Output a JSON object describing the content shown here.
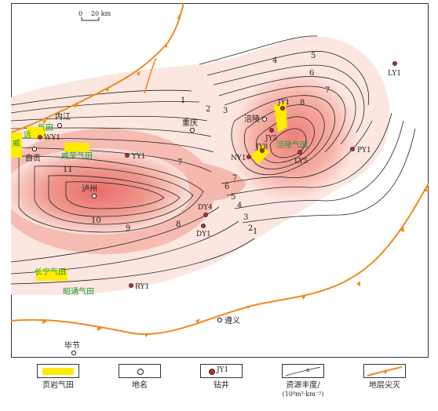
{
  "map": {
    "scale_bar": {
      "zero": "0",
      "distance": "20 km"
    },
    "cities": [
      {
        "id": "neijiang",
        "name": "内江"
      },
      {
        "id": "zigong",
        "name": "自贡"
      },
      {
        "id": "luzhou",
        "name": "泸州"
      },
      {
        "id": "chongqing",
        "name": "重庆"
      },
      {
        "id": "fuling",
        "name": "涪陵"
      },
      {
        "id": "zunyi",
        "name": "遵义"
      },
      {
        "id": "bijie",
        "name": "毕节"
      }
    ],
    "wells": [
      {
        "id": "wy1",
        "name": "WY1"
      },
      {
        "id": "yy1",
        "name": "YY1"
      },
      {
        "id": "jy1",
        "name": "JY1"
      },
      {
        "id": "jy5",
        "name": "JY5"
      },
      {
        "id": "jy8",
        "name": "JY8"
      },
      {
        "id": "ny1",
        "name": "NY1"
      },
      {
        "id": "ly5",
        "name": "LY5"
      },
      {
        "id": "py1",
        "name": "PY1"
      },
      {
        "id": "ly1",
        "name": "LY1"
      },
      {
        "id": "dy4",
        "name": "DY4"
      },
      {
        "id": "dy1",
        "name": "DY1"
      },
      {
        "id": "ry1",
        "name": "RY1"
      }
    ],
    "gas_fields": [
      {
        "id": "weiyuan",
        "name_top": "威",
        "name_right": "远",
        "name_extra": "气田"
      },
      {
        "id": "weirong",
        "name": "威荣气田"
      },
      {
        "id": "fuling",
        "name": "涪陵气田"
      },
      {
        "id": "changning",
        "name": "长宁气田"
      },
      {
        "id": "zhaotong",
        "name": "昭通气田"
      }
    ],
    "contour_labels": [
      "1",
      "2",
      "3",
      "4",
      "5",
      "6",
      "7",
      "8",
      "9",
      "10",
      "11"
    ],
    "colors": {
      "gas_field": "#ffec00",
      "well": "#d0212a",
      "pinchout": "#f08a1c",
      "field_text": "#1a9a3a",
      "shade_light": "#fbe9e3",
      "shade_dark": "#ea6d6b"
    }
  },
  "legend": [
    {
      "id": "gas-field",
      "label": "页岩气田"
    },
    {
      "id": "place-name",
      "label": "地名"
    },
    {
      "id": "well",
      "label": "钻井",
      "symbol_text": "JY1"
    },
    {
      "id": "resource",
      "label": "资源丰度/",
      "unit": "(10⁸m³·km⁻²)"
    },
    {
      "id": "pinchout",
      "label": "地层尖灭"
    }
  ]
}
